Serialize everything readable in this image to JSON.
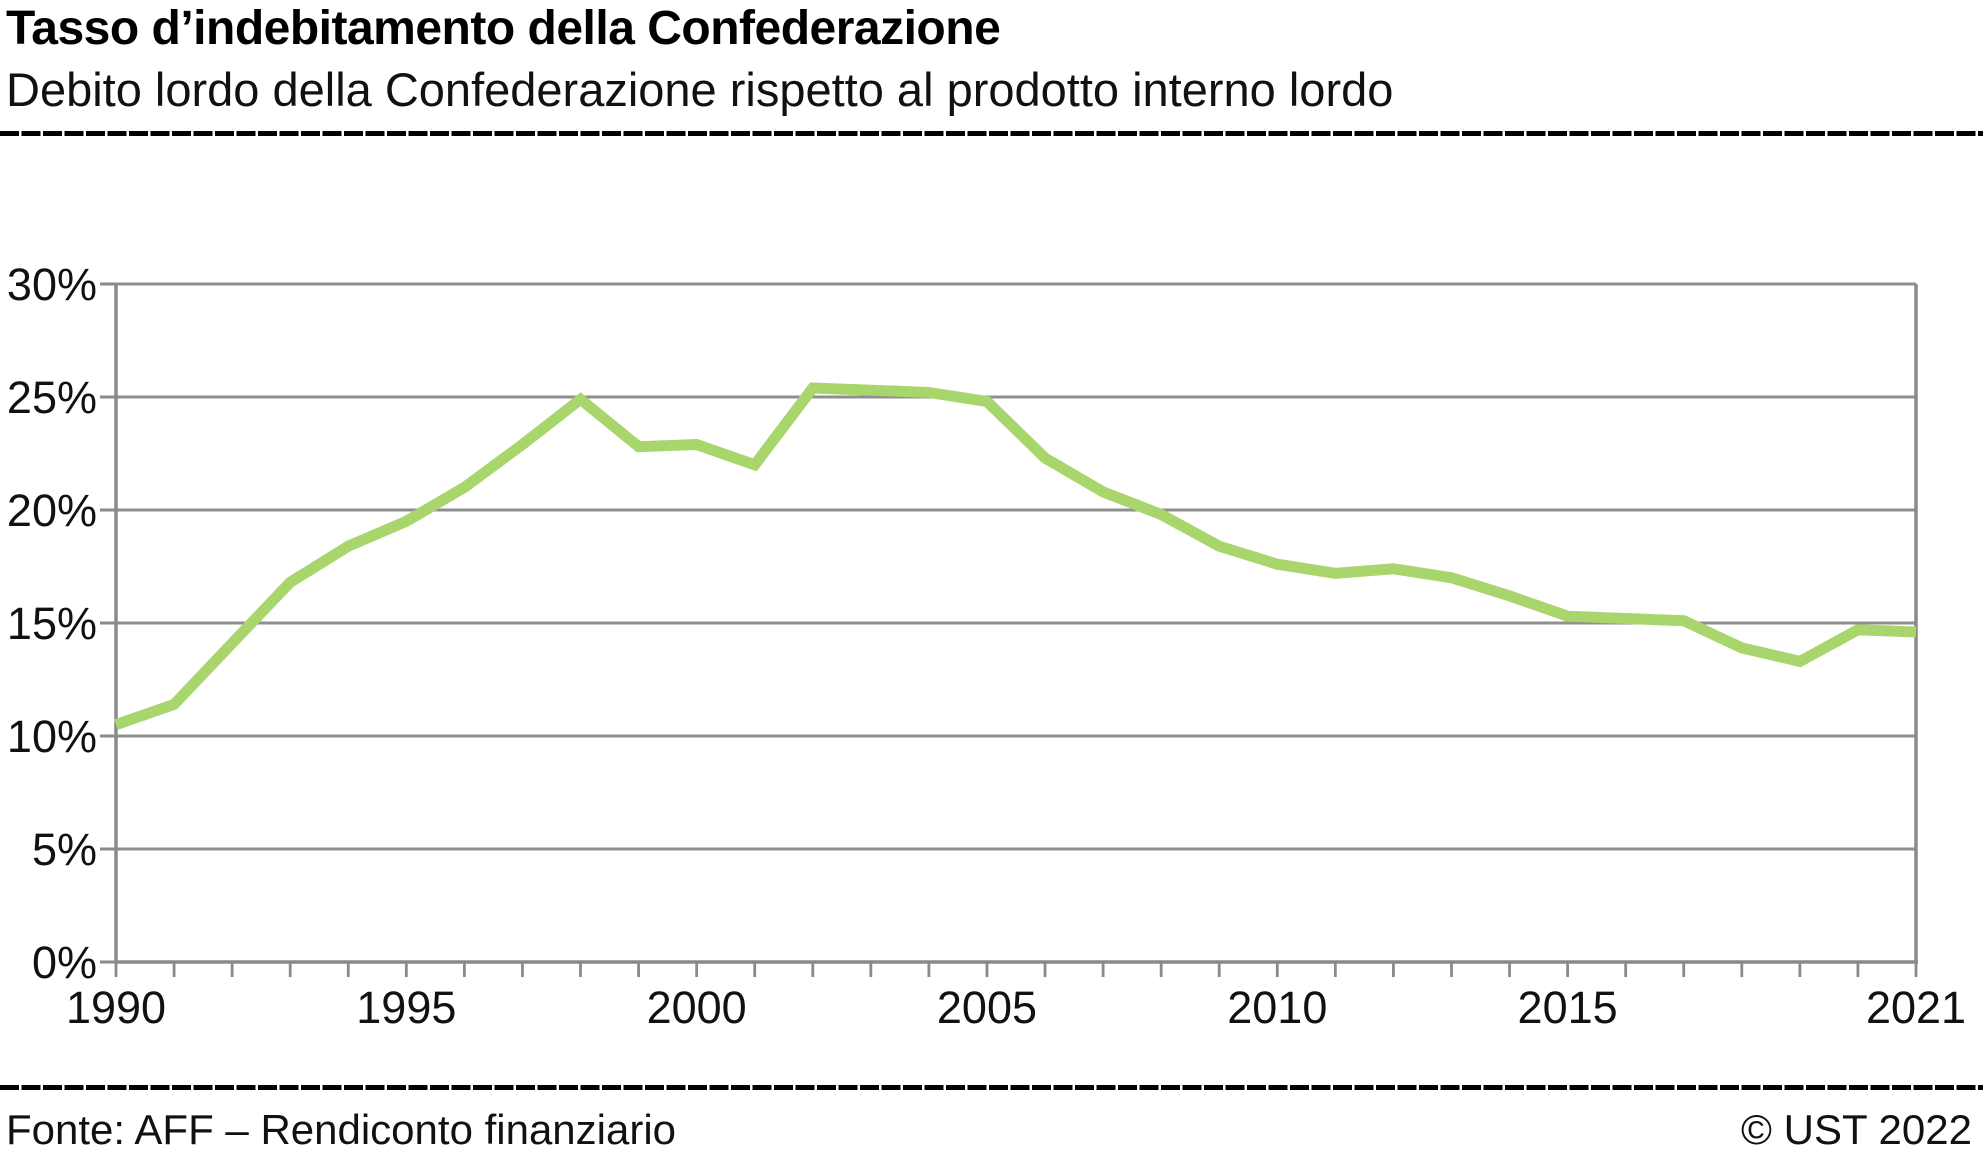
{
  "header": {
    "title": "Tasso d’indebitamento della Confederazione",
    "subtitle": "Debito lordo della Confederazione rispetto al prodotto interno lordo"
  },
  "footer": {
    "source": "Fonte: AFF – Rendiconto finanziario",
    "copyright": "© UST 2022"
  },
  "colors": {
    "line": "#a8d56c",
    "grid": "#8f8f8f",
    "axis": "#8a8a8a",
    "tick_text": "#111111",
    "rule": "#000000"
  },
  "chart_data": {
    "type": "line",
    "title": "Tasso d’indebitamento della Confederazione",
    "subtitle": "Debito lordo della Confederazione rispetto al prodotto interno lordo",
    "xlabel": "",
    "ylabel": "",
    "unit": "% del PIL",
    "grid": "horizontal",
    "legend": "none",
    "ylim": [
      0,
      30
    ],
    "yticks": [
      0,
      5,
      10,
      15,
      20,
      25,
      30
    ],
    "ytick_labels": [
      "0%",
      "5%",
      "10%",
      "15%",
      "20%",
      "25%",
      "30%"
    ],
    "xlim": [
      1990,
      2021
    ],
    "xticks_labeled": [
      1990,
      1995,
      2000,
      2005,
      2010,
      2015,
      2021
    ],
    "xtick_labels": [
      "1990",
      "1995",
      "2000",
      "2005",
      "2010",
      "2015",
      "2021"
    ],
    "x": [
      1990,
      1991,
      1992,
      1993,
      1994,
      1995,
      1996,
      1997,
      1998,
      1999,
      2000,
      2001,
      2002,
      2003,
      2004,
      2005,
      2006,
      2007,
      2008,
      2009,
      2010,
      2011,
      2012,
      2013,
      2014,
      2015,
      2016,
      2017,
      2018,
      2019,
      2020,
      2021
    ],
    "series": [
      {
        "name": "Tasso d’indebitamento della Confederazione",
        "values": [
          10.5,
          11.4,
          14.1,
          16.8,
          18.4,
          19.5,
          21.0,
          22.9,
          24.9,
          22.8,
          22.9,
          22.0,
          25.4,
          25.3,
          25.2,
          24.8,
          22.3,
          20.8,
          19.8,
          18.4,
          17.6,
          17.2,
          17.4,
          17.0,
          16.2,
          15.3,
          15.2,
          15.1,
          13.9,
          13.3,
          14.7,
          14.6
        ]
      }
    ]
  }
}
